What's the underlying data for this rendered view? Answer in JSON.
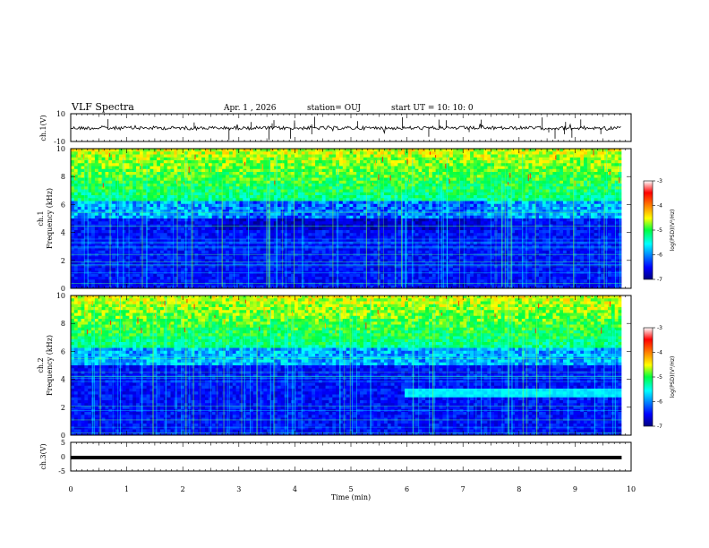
{
  "header": {
    "title": "VLF Spectra",
    "date": "Apr. 1 , 2026",
    "station": "station= OUJ",
    "start": "start UT =  10: 10: 0"
  },
  "chart_data": [
    {
      "type": "line",
      "ylabel": "ch.1(V)",
      "ylim": [
        -10,
        10
      ],
      "yticks": [
        "10",
        "-10"
      ],
      "xlim": [
        0,
        10
      ],
      "note_values": "waveform amplitude approx -1 V to 1 V baseline with short spikes"
    },
    {
      "type": "heatmap",
      "ylabel_top": "ch.1",
      "ylabel": "Frequency (kHz)",
      "ylim": [
        0,
        10
      ],
      "yticks": [
        "0",
        "2",
        "4",
        "6",
        "8",
        "10"
      ],
      "xlim": [
        0,
        9.83
      ],
      "colorbar": {
        "ticks": [
          "-3",
          "-4",
          "-5",
          "-6",
          "-7"
        ],
        "label": "log(PSD)(V²/Hz)",
        "range": [
          -7,
          -3
        ]
      }
    },
    {
      "type": "heatmap",
      "ylabel_top": "ch.2",
      "ylabel": "Frequency (kHz)",
      "ylim": [
        0,
        10
      ],
      "yticks": [
        "0",
        "2",
        "4",
        "6",
        "8",
        "10"
      ],
      "xlim": [
        0,
        9.83
      ],
      "colorbar": {
        "ticks": [
          "-3",
          "-4",
          "-5",
          "-6",
          "-7"
        ],
        "label": "log(PSD)(V²/Hz)",
        "range": [
          -7,
          -3
        ]
      }
    },
    {
      "type": "line",
      "ylabel": "ch.3(V)",
      "ylim": [
        -5,
        5
      ],
      "yticks": [
        "5",
        "0",
        "-5"
      ],
      "xlim": [
        0,
        10
      ],
      "x": [
        0,
        9.83
      ],
      "y": [
        -0.3,
        -0.3
      ],
      "xlabel": "Time (min)",
      "xticks": [
        "0",
        "1",
        "2",
        "3",
        "4",
        "5",
        "6",
        "7",
        "8",
        "9",
        "10"
      ]
    }
  ]
}
